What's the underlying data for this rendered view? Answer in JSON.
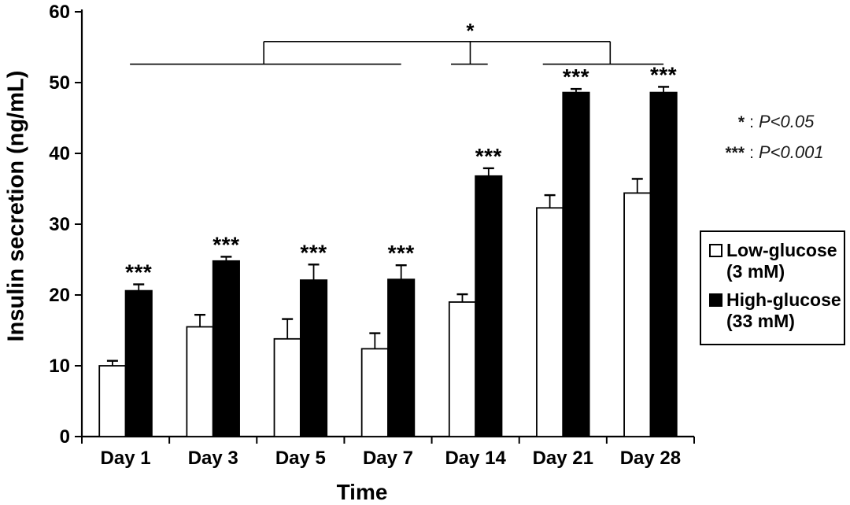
{
  "chart_data": {
    "type": "bar",
    "title": "",
    "xlabel": "Time",
    "ylabel": "Insulin secretion (ng/mL)",
    "ylim": [
      0,
      60
    ],
    "yticks": [
      0,
      10,
      20,
      30,
      40,
      50,
      60
    ],
    "grid": false,
    "legend_position": "right-outside",
    "categories": [
      "Day 1",
      "Day 3",
      "Day 5",
      "Day 7",
      "Day 14",
      "Day 21",
      "Day 28"
    ],
    "series": [
      {
        "name": "Low-glucose (3 mM)",
        "fill": "#ffffff",
        "stroke": "#000000",
        "values": [
          10.0,
          15.5,
          13.8,
          12.4,
          19.0,
          32.3,
          34.4
        ],
        "errors": [
          0.7,
          1.7,
          2.8,
          2.2,
          1.1,
          1.8,
          2.0
        ]
      },
      {
        "name": "High-glucose (33 mM)",
        "fill": "#000000",
        "stroke": "#000000",
        "values": [
          20.6,
          24.8,
          22.1,
          22.2,
          36.8,
          48.6,
          48.6
        ],
        "errors": [
          0.9,
          0.6,
          2.2,
          2.0,
          1.1,
          0.5,
          0.8
        ]
      }
    ],
    "sig_labels": [
      "***",
      "***",
      "***",
      "***",
      "***",
      "***",
      "***"
    ],
    "comparison_bracket": {
      "label": "*",
      "lower_y": 52.6,
      "upper_y": 55.8,
      "lower_left_span": [
        0.05,
        3.15
      ],
      "upper_span": [
        1.58,
        5.54
      ],
      "drop_pos": 3.94,
      "drop_cap_span": [
        3.72,
        4.14
      ],
      "lower_right_span": [
        4.77,
        6.15
      ]
    }
  },
  "legend": {
    "items": [
      {
        "line1": "Low-glucose",
        "line2": "(3 mM)",
        "swatch": "#ffffff"
      },
      {
        "line1": "High-glucose",
        "line2": "(33 mM)",
        "swatch": "#000000"
      }
    ]
  },
  "annotations": [
    {
      "symbol": "*",
      "separator": ":",
      "meaning": "P<0.05"
    },
    {
      "symbol": "***",
      "separator": ":",
      "meaning": "P<0.001"
    }
  ]
}
